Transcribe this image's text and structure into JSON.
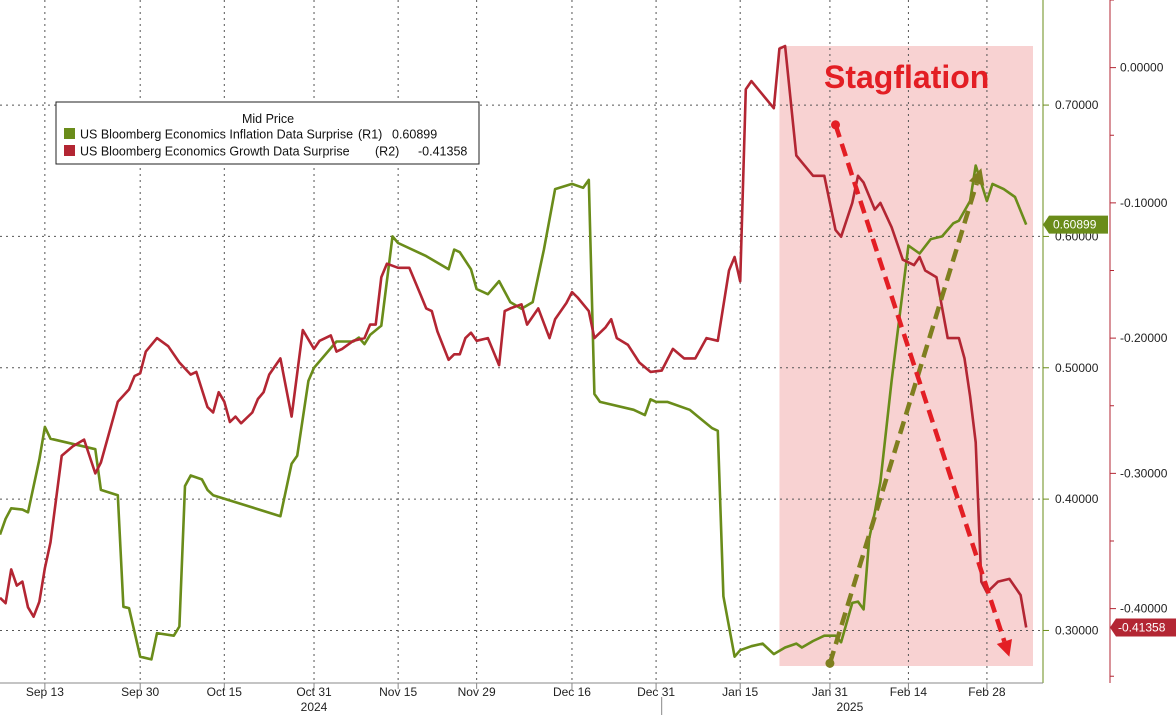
{
  "chart_data": {
    "type": "line",
    "legend": {
      "header": "Mid Price",
      "placement": "top-left"
    },
    "annotation": "Stagflation",
    "colors": {
      "inflation": "#6a8c1a",
      "growth": "#b32633",
      "shade": "#f8d2d2",
      "arrow_up": "#7f7f1f",
      "arrow_down": "#e31e24",
      "title": "#e31e24"
    },
    "x_ticks": [
      "Sep 13",
      "Sep 30",
      "Oct 15",
      "Oct 31",
      "Nov 15",
      "Nov 29",
      "Dec 16",
      "Dec 31",
      "Jan 15",
      "Jan 31",
      "Feb 14",
      "Feb 28"
    ],
    "year_labels": [
      "2024",
      "2025"
    ],
    "x_range": [
      "2024-09-05",
      "2025-03-10"
    ],
    "shaded_period": [
      "2025-01-22",
      "2025-03-10"
    ],
    "axes": {
      "R1": {
        "range": [
          0.26,
          0.78
        ],
        "ticks": [
          0.3,
          0.4,
          0.5,
          0.6,
          0.7
        ],
        "tick_labels": [
          "0.30000",
          "0.40000",
          "0.50000",
          "0.60000",
          "0.70000"
        ]
      },
      "R2": {
        "range": [
          -0.455,
          0.05
        ],
        "ticks": [
          0.0,
          -0.1,
          -0.2,
          -0.3,
          -0.4
        ],
        "tick_labels": [
          "0.00000",
          "-0.10000",
          "-0.20000",
          "-0.30000",
          "-0.40000"
        ]
      }
    },
    "grid": true,
    "series": [
      {
        "name": "US Bloomberg Economics Inflation Data Surprise",
        "axis": "R1",
        "legend_value": "0.60899",
        "last_label": "0.60899",
        "points": [
          [
            "2024-09-05",
            0.373
          ],
          [
            "2024-09-06",
            0.385
          ],
          [
            "2024-09-07",
            0.393
          ],
          [
            "2024-09-09",
            0.392
          ],
          [
            "2024-09-10",
            0.39
          ],
          [
            "2024-09-12",
            0.43
          ],
          [
            "2024-09-13",
            0.455
          ],
          [
            "2024-09-14",
            0.446
          ],
          [
            "2024-09-22",
            0.438
          ],
          [
            "2024-09-23",
            0.407
          ],
          [
            "2024-09-26",
            0.403
          ],
          [
            "2024-09-27",
            0.318
          ],
          [
            "2024-09-28",
            0.317
          ],
          [
            "2024-09-30",
            0.28
          ],
          [
            "2024-10-02",
            0.278
          ],
          [
            "2024-10-03",
            0.298
          ],
          [
            "2024-10-06",
            0.296
          ],
          [
            "2024-10-07",
            0.303
          ],
          [
            "2024-10-08",
            0.41
          ],
          [
            "2024-10-09",
            0.418
          ],
          [
            "2024-10-11",
            0.415
          ],
          [
            "2024-10-12",
            0.407
          ],
          [
            "2024-10-13",
            0.403
          ],
          [
            "2024-10-25",
            0.387
          ],
          [
            "2024-10-27",
            0.427
          ],
          [
            "2024-10-28",
            0.433
          ],
          [
            "2024-10-30",
            0.49
          ],
          [
            "2024-10-31",
            0.5
          ],
          [
            "2024-11-04",
            0.52
          ],
          [
            "2024-11-07",
            0.52
          ],
          [
            "2024-11-08",
            0.523
          ],
          [
            "2024-11-09",
            0.518
          ],
          [
            "2024-11-10",
            0.525
          ],
          [
            "2024-11-12",
            0.532
          ],
          [
            "2024-11-14",
            0.6
          ],
          [
            "2024-11-15",
            0.595
          ],
          [
            "2024-11-20",
            0.585
          ],
          [
            "2024-11-24",
            0.575
          ],
          [
            "2024-11-25",
            0.59
          ],
          [
            "2024-11-26",
            0.588
          ],
          [
            "2024-11-28",
            0.575
          ],
          [
            "2024-11-29",
            0.56
          ],
          [
            "2024-12-01",
            0.556
          ],
          [
            "2024-12-03",
            0.566
          ],
          [
            "2024-12-05",
            0.55
          ],
          [
            "2024-12-07",
            0.545
          ],
          [
            "2024-12-09",
            0.55
          ],
          [
            "2024-12-11",
            0.59
          ],
          [
            "2024-12-13",
            0.636
          ],
          [
            "2024-12-16",
            0.64
          ],
          [
            "2024-12-18",
            0.637
          ],
          [
            "2024-12-19",
            0.643
          ],
          [
            "2024-12-20",
            0.48
          ],
          [
            "2024-12-21",
            0.474
          ],
          [
            "2024-12-27",
            0.468
          ],
          [
            "2024-12-29",
            0.464
          ],
          [
            "2024-12-30",
            0.476
          ],
          [
            "2024-12-31",
            0.474
          ],
          [
            "2025-01-02",
            0.474
          ],
          [
            "2025-01-06",
            0.468
          ],
          [
            "2025-01-08",
            0.461
          ],
          [
            "2025-01-10",
            0.454
          ],
          [
            "2025-01-11",
            0.452
          ],
          [
            "2025-01-12",
            0.326
          ],
          [
            "2025-01-14",
            0.28
          ],
          [
            "2025-01-15",
            0.285
          ],
          [
            "2025-01-17",
            0.288
          ],
          [
            "2025-01-19",
            0.29
          ],
          [
            "2025-01-21",
            0.282
          ],
          [
            "2025-01-23",
            0.287
          ],
          [
            "2025-01-25",
            0.29
          ],
          [
            "2025-01-26",
            0.287
          ],
          [
            "2025-01-28",
            0.292
          ],
          [
            "2025-01-30",
            0.296
          ],
          [
            "2025-02-01",
            0.296
          ],
          [
            "2025-02-02",
            0.291
          ],
          [
            "2025-02-04",
            0.321
          ],
          [
            "2025-02-05",
            0.322
          ],
          [
            "2025-02-06",
            0.316
          ],
          [
            "2025-02-07",
            0.37
          ],
          [
            "2025-02-08",
            0.39
          ],
          [
            "2025-02-09",
            0.413
          ],
          [
            "2025-02-11",
            0.49
          ],
          [
            "2025-02-13",
            0.559
          ],
          [
            "2025-02-14",
            0.593
          ],
          [
            "2025-02-16",
            0.587
          ],
          [
            "2025-02-18",
            0.598
          ],
          [
            "2025-02-20",
            0.6
          ],
          [
            "2025-02-22",
            0.61
          ],
          [
            "2025-02-23",
            0.612
          ],
          [
            "2025-02-25",
            0.627
          ],
          [
            "2025-02-26",
            0.654
          ],
          [
            "2025-02-28",
            0.627
          ],
          [
            "2025-03-01",
            0.64
          ],
          [
            "2025-03-03",
            0.636
          ],
          [
            "2025-03-05",
            0.63
          ],
          [
            "2025-03-07",
            0.609
          ]
        ]
      },
      {
        "name": "US Bloomberg Economics Growth Data Surprise",
        "axis": "R2",
        "legend_value": "-0.41358",
        "last_label": "-0.41358",
        "points": [
          [
            "2024-09-05",
            -0.392
          ],
          [
            "2024-09-06",
            -0.396
          ],
          [
            "2024-09-07",
            -0.371
          ],
          [
            "2024-09-08",
            -0.383
          ],
          [
            "2024-09-09",
            -0.38
          ],
          [
            "2024-09-10",
            -0.399
          ],
          [
            "2024-09-11",
            -0.406
          ],
          [
            "2024-09-12",
            -0.395
          ],
          [
            "2024-09-13",
            -0.37
          ],
          [
            "2024-09-14",
            -0.351
          ],
          [
            "2024-09-16",
            -0.287
          ],
          [
            "2024-09-18",
            -0.28
          ],
          [
            "2024-09-20",
            -0.275
          ],
          [
            "2024-09-22",
            -0.3
          ],
          [
            "2024-09-23",
            -0.292
          ],
          [
            "2024-09-26",
            -0.247
          ],
          [
            "2024-09-28",
            -0.238
          ],
          [
            "2024-09-29",
            -0.228
          ],
          [
            "2024-09-30",
            -0.226
          ],
          [
            "2024-10-01",
            -0.21
          ],
          [
            "2024-10-03",
            -0.2
          ],
          [
            "2024-10-05",
            -0.206
          ],
          [
            "2024-10-07",
            -0.218
          ],
          [
            "2024-10-09",
            -0.227
          ],
          [
            "2024-10-10",
            -0.225
          ],
          [
            "2024-10-12",
            -0.251
          ],
          [
            "2024-10-13",
            -0.255
          ],
          [
            "2024-10-14",
            -0.24
          ],
          [
            "2024-10-15",
            -0.247
          ],
          [
            "2024-10-16",
            -0.262
          ],
          [
            "2024-10-17",
            -0.258
          ],
          [
            "2024-10-18",
            -0.263
          ],
          [
            "2024-10-20",
            -0.255
          ],
          [
            "2024-10-21",
            -0.245
          ],
          [
            "2024-10-22",
            -0.24
          ],
          [
            "2024-10-23",
            -0.227
          ],
          [
            "2024-10-25",
            -0.215
          ],
          [
            "2024-10-27",
            -0.258
          ],
          [
            "2024-10-29",
            -0.194
          ],
          [
            "2024-10-31",
            -0.208
          ],
          [
            "2024-11-01",
            -0.202
          ],
          [
            "2024-11-03",
            -0.198
          ],
          [
            "2024-11-04",
            -0.21
          ],
          [
            "2024-11-05",
            -0.208
          ],
          [
            "2024-11-07",
            -0.202
          ],
          [
            "2024-11-09",
            -0.2
          ],
          [
            "2024-11-10",
            -0.19
          ],
          [
            "2024-11-11",
            -0.19
          ],
          [
            "2024-11-12",
            -0.155
          ],
          [
            "2024-11-13",
            -0.145
          ],
          [
            "2024-11-15",
            -0.148
          ],
          [
            "2024-11-17",
            -0.148
          ],
          [
            "2024-11-19",
            -0.168
          ],
          [
            "2024-11-20",
            -0.178
          ],
          [
            "2024-11-21",
            -0.18
          ],
          [
            "2024-11-22",
            -0.195
          ],
          [
            "2024-11-24",
            -0.216
          ],
          [
            "2024-11-25",
            -0.212
          ],
          [
            "2024-11-26",
            -0.212
          ],
          [
            "2024-11-27",
            -0.2
          ],
          [
            "2024-11-28",
            -0.196
          ],
          [
            "2024-11-29",
            -0.202
          ],
          [
            "2024-12-01",
            -0.2
          ],
          [
            "2024-12-03",
            -0.22
          ],
          [
            "2024-12-04",
            -0.18
          ],
          [
            "2024-12-05",
            -0.178
          ],
          [
            "2024-12-07",
            -0.175
          ],
          [
            "2024-12-08",
            -0.19
          ],
          [
            "2024-12-10",
            -0.178
          ],
          [
            "2024-12-12",
            -0.2
          ],
          [
            "2024-12-13",
            -0.186
          ],
          [
            "2024-12-15",
            -0.174
          ],
          [
            "2024-12-16",
            -0.166
          ],
          [
            "2024-12-17",
            -0.17
          ],
          [
            "2024-12-19",
            -0.18
          ],
          [
            "2024-12-20",
            -0.2
          ],
          [
            "2024-12-22",
            -0.192
          ],
          [
            "2024-12-23",
            -0.186
          ],
          [
            "2024-12-24",
            -0.2
          ],
          [
            "2024-12-26",
            -0.205
          ],
          [
            "2024-12-28",
            -0.218
          ],
          [
            "2024-12-30",
            -0.225
          ],
          [
            "2025-01-01",
            -0.224
          ],
          [
            "2025-01-03",
            -0.208
          ],
          [
            "2025-01-05",
            -0.215
          ],
          [
            "2025-01-07",
            -0.215
          ],
          [
            "2025-01-09",
            -0.2
          ],
          [
            "2025-01-11",
            -0.202
          ],
          [
            "2025-01-13",
            -0.15
          ],
          [
            "2025-01-14",
            -0.14
          ],
          [
            "2025-01-15",
            -0.158
          ],
          [
            "2025-01-16",
            -0.016
          ],
          [
            "2025-01-17",
            -0.01
          ],
          [
            "2025-01-21",
            -0.03
          ],
          [
            "2025-01-22",
            0.014
          ],
          [
            "2025-01-23",
            0.016
          ],
          [
            "2025-01-25",
            -0.065
          ],
          [
            "2025-01-26",
            -0.07
          ],
          [
            "2025-01-28",
            -0.08
          ],
          [
            "2025-01-30",
            -0.08
          ],
          [
            "2025-02-01",
            -0.12
          ],
          [
            "2025-02-02",
            -0.125
          ],
          [
            "2025-02-04",
            -0.1
          ],
          [
            "2025-02-05",
            -0.08
          ],
          [
            "2025-02-06",
            -0.085
          ],
          [
            "2025-02-07",
            -0.095
          ],
          [
            "2025-02-08",
            -0.105
          ],
          [
            "2025-02-09",
            -0.1
          ],
          [
            "2025-02-11",
            -0.118
          ],
          [
            "2025-02-13",
            -0.142
          ],
          [
            "2025-02-15",
            -0.146
          ],
          [
            "2025-02-16",
            -0.14
          ],
          [
            "2025-02-17",
            -0.15
          ],
          [
            "2025-02-19",
            -0.155
          ],
          [
            "2025-02-21",
            -0.2
          ],
          [
            "2025-02-23",
            -0.2
          ],
          [
            "2025-02-24",
            -0.215
          ],
          [
            "2025-02-25",
            -0.243
          ],
          [
            "2025-02-26",
            -0.277
          ],
          [
            "2025-02-27",
            -0.38
          ],
          [
            "2025-02-28",
            -0.388
          ],
          [
            "2025-03-02",
            -0.38
          ],
          [
            "2025-03-04",
            -0.378
          ],
          [
            "2025-03-06",
            -0.39
          ],
          [
            "2025-03-07",
            -0.414
          ]
        ]
      }
    ],
    "arrows": [
      {
        "from": [
          "2025-01-31",
          0.275
        ],
        "to": [
          "2025-02-27",
          0.652
        ],
        "axis": "R1"
      },
      {
        "from": [
          "2025-02-01",
          0.685
        ],
        "to": [
          "2025-03-04",
          0.28
        ],
        "axis": "R1"
      }
    ]
  }
}
